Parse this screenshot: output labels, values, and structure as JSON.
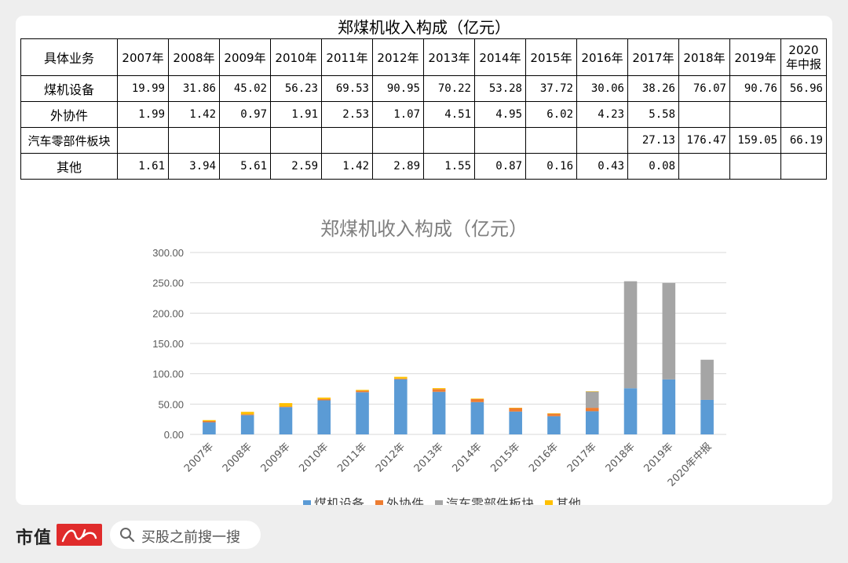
{
  "table": {
    "title": "郑煤机收入构成（亿元）",
    "header_label": "具体业务",
    "years": [
      "2007年",
      "2008年",
      "2009年",
      "2010年",
      "2011年",
      "2012年",
      "2013年",
      "2014年",
      "2015年",
      "2016年",
      "2017年",
      "2018年",
      "2019年",
      "2020年中报"
    ],
    "rows": [
      {
        "label": "煤机设备",
        "values": [
          "19.99",
          "31.86",
          "45.02",
          "56.23",
          "69.53",
          "90.95",
          "70.22",
          "53.28",
          "37.72",
          "30.06",
          "38.26",
          "76.07",
          "90.76",
          "56.96"
        ]
      },
      {
        "label": "外协件",
        "values": [
          "1.99",
          "1.42",
          "0.97",
          "1.91",
          "2.53",
          "1.07",
          "4.51",
          "4.95",
          "6.02",
          "4.23",
          "5.58",
          "",
          "",
          ""
        ]
      },
      {
        "label": "汽车零部件板块",
        "values": [
          "",
          "",
          "",
          "",
          "",
          "",
          "",
          "",
          "",
          "",
          "27.13",
          "176.47",
          "159.05",
          "66.19"
        ]
      },
      {
        "label": "其他",
        "values": [
          "1.61",
          "3.94",
          "5.61",
          "2.59",
          "1.42",
          "2.89",
          "1.55",
          "0.87",
          "0.16",
          "0.43",
          "0.08",
          "",
          "",
          ""
        ]
      }
    ]
  },
  "chart_data": {
    "type": "bar",
    "stacked": true,
    "title": "郑煤机收入构成（亿元）",
    "categories": [
      "2007年",
      "2008年",
      "2009年",
      "2010年",
      "2011年",
      "2012年",
      "2013年",
      "2014年",
      "2015年",
      "2016年",
      "2017年",
      "2018年",
      "2019年",
      "2020年中报"
    ],
    "series": [
      {
        "name": "煤机设备",
        "color": "#5b9bd5",
        "values": [
          19.99,
          31.86,
          45.02,
          56.23,
          69.53,
          90.95,
          70.22,
          53.28,
          37.72,
          30.06,
          38.26,
          76.07,
          90.76,
          56.96
        ]
      },
      {
        "name": "外协件",
        "color": "#ed7d31",
        "values": [
          1.99,
          1.42,
          0.97,
          1.91,
          2.53,
          1.07,
          4.51,
          4.95,
          6.02,
          4.23,
          5.58,
          0,
          0,
          0
        ]
      },
      {
        "name": "汽车零部件板块",
        "color": "#a5a5a5",
        "values": [
          0,
          0,
          0,
          0,
          0,
          0,
          0,
          0,
          0,
          0,
          27.13,
          176.47,
          159.05,
          66.19
        ]
      },
      {
        "name": "其他",
        "color": "#ffc000",
        "values": [
          1.61,
          3.94,
          5.61,
          2.59,
          1.42,
          2.89,
          1.55,
          0.87,
          0.16,
          0.43,
          0.08,
          0,
          0,
          0
        ]
      }
    ],
    "yticks": [
      "0.00",
      "50.00",
      "100.00",
      "150.00",
      "200.00",
      "250.00",
      "300.00"
    ],
    "ylim": [
      0,
      300
    ],
    "grid": true,
    "legend": "bottom"
  },
  "footer": {
    "brand": "市值",
    "brand_logo": "风云",
    "search_placeholder": "买股之前搜一搜"
  }
}
